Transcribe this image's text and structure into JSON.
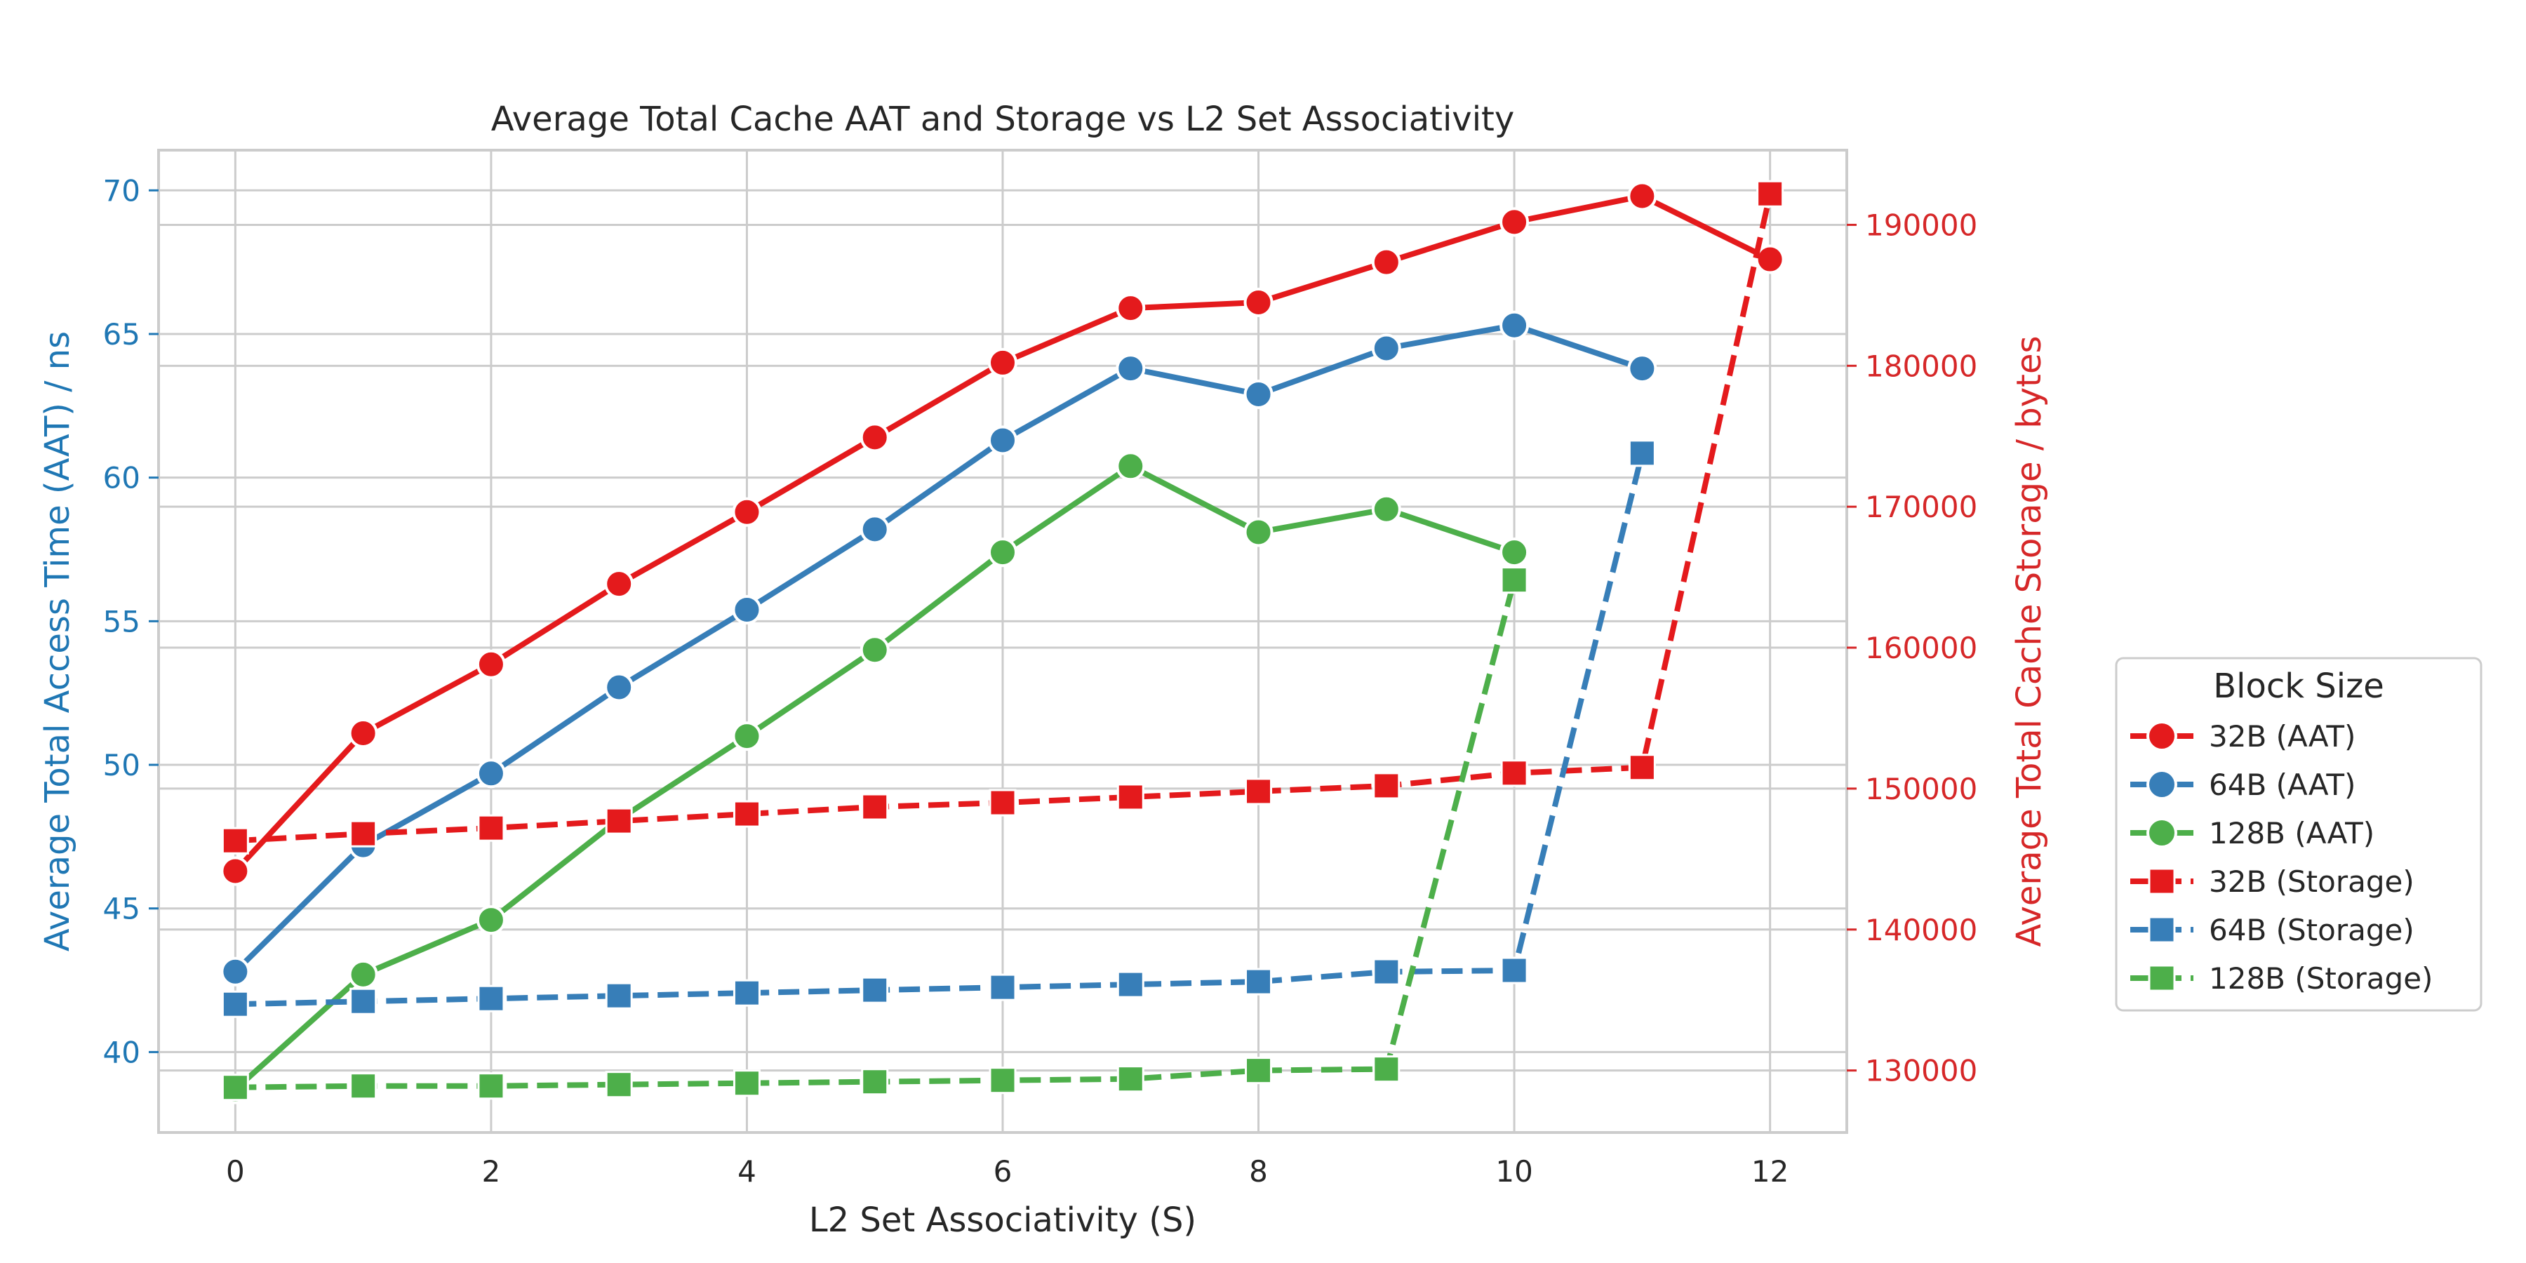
{
  "colors": {
    "aat_axis": "#1f77b4",
    "storage_axis": "#d62728",
    "text": "#262626",
    "grid": "#cccccc",
    "spine": "#cccccc",
    "series_32": "#e41a1c",
    "series_64": "#377eb8",
    "series_128": "#4daf4a"
  },
  "chart_data": {
    "type": "line",
    "title": "Average Total Cache AAT and Storage vs L2 Set Associativity",
    "xlabel": "L2 Set Associativity (S)",
    "ylabel_left": "Average Total Access Time (AAT) / ns",
    "ylabel_right": "Average Total Cache Storage / bytes",
    "xlim": [
      -0.6,
      12.6
    ],
    "ylim_left": [
      37.2,
      71.4
    ],
    "ylim_right": [
      125600,
      195300
    ],
    "xticks": [
      0,
      2,
      4,
      6,
      8,
      10,
      12
    ],
    "yticks_left": [
      40,
      45,
      50,
      55,
      60,
      65,
      70
    ],
    "yticks_right": [
      130000,
      140000,
      150000,
      160000,
      170000,
      180000,
      190000
    ],
    "grid": true,
    "legend": {
      "title": "Block Size",
      "placement": "outside-right",
      "entries": [
        "32B (AAT)",
        "64B (AAT)",
        "128B (AAT)",
        "32B (Storage)",
        "64B (Storage)",
        "128B (Storage)"
      ]
    },
    "series": [
      {
        "name": "32B (AAT)",
        "axis": "left",
        "color": "#e41a1c",
        "marker": "circle",
        "dash": false,
        "x": [
          0,
          1,
          2,
          3,
          4,
          5,
          6,
          7,
          8,
          9,
          10,
          11,
          12
        ],
        "values": [
          46.3,
          51.1,
          53.5,
          56.3,
          58.8,
          61.4,
          64.0,
          65.9,
          66.1,
          67.5,
          68.9,
          69.8,
          67.6
        ]
      },
      {
        "name": "64B (AAT)",
        "axis": "left",
        "color": "#377eb8",
        "marker": "circle",
        "dash": false,
        "x": [
          0,
          1,
          2,
          3,
          4,
          5,
          6,
          7,
          8,
          9,
          10,
          11
        ],
        "values": [
          42.8,
          47.2,
          49.7,
          52.7,
          55.4,
          58.2,
          61.3,
          63.8,
          62.9,
          64.5,
          65.3,
          63.8
        ]
      },
      {
        "name": "128B (AAT)",
        "axis": "left",
        "color": "#4daf4a",
        "marker": "circle",
        "dash": false,
        "x": [
          0,
          1,
          2,
          3,
          4,
          5,
          6,
          7,
          8,
          9,
          10
        ],
        "values": [
          38.7,
          42.7,
          44.6,
          48.1,
          51.0,
          54.0,
          57.4,
          60.4,
          58.1,
          58.9,
          57.4
        ]
      },
      {
        "name": "32B (Storage)",
        "axis": "right",
        "color": "#e41a1c",
        "marker": "square",
        "dash": true,
        "x": [
          0,
          1,
          2,
          3,
          4,
          5,
          6,
          7,
          8,
          9,
          10,
          11,
          12
        ],
        "values": [
          146300,
          146800,
          147200,
          147700,
          148200,
          148700,
          149000,
          149400,
          149800,
          150200,
          151100,
          151500,
          192200
        ]
      },
      {
        "name": "64B (Storage)",
        "axis": "right",
        "color": "#377eb8",
        "marker": "square",
        "dash": true,
        "x": [
          0,
          1,
          2,
          3,
          4,
          5,
          6,
          7,
          8,
          9,
          10,
          11
        ],
        "values": [
          134700,
          134900,
          135100,
          135300,
          135500,
          135700,
          135900,
          136100,
          136300,
          137000,
          137100,
          173800
        ]
      },
      {
        "name": "128B (Storage)",
        "axis": "right",
        "color": "#4daf4a",
        "marker": "square",
        "dash": true,
        "x": [
          0,
          1,
          2,
          3,
          4,
          5,
          6,
          7,
          8,
          9,
          10
        ],
        "values": [
          128800,
          128900,
          128900,
          129000,
          129100,
          129200,
          129300,
          129400,
          130000,
          130100,
          164800
        ]
      }
    ]
  }
}
